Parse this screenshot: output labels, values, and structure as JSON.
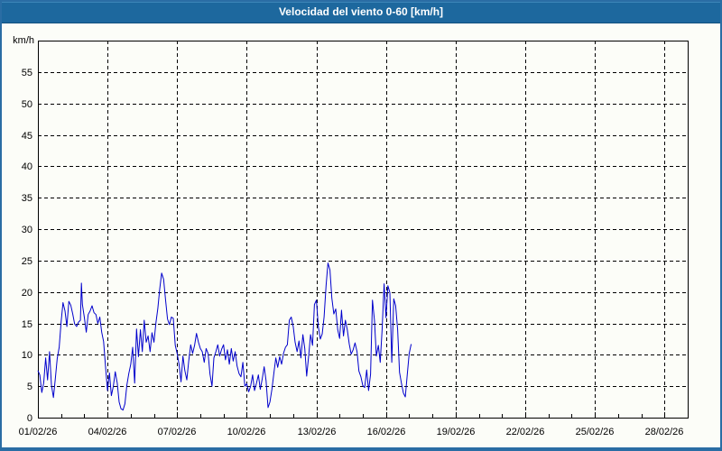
{
  "window": {
    "title": "Velocidad del viento 0-60 [km/h]"
  },
  "chart_data": {
    "type": "line",
    "title": "Velocidad del viento 0-60 [km/h]",
    "unit_label": "km/h",
    "legend": "none",
    "grid": "dashed",
    "x_axis": {
      "tick_labels": [
        "01/02/26",
        "04/02/26",
        "07/02/26",
        "10/02/26",
        "13/02/26",
        "16/02/26",
        "19/02/26",
        "22/02/26",
        "25/02/26",
        "28/02/26"
      ],
      "tick_positions_days": [
        0,
        3,
        6,
        9,
        12,
        15,
        18,
        21,
        24,
        27
      ],
      "range_days": [
        0,
        28
      ],
      "minor_tick_interval_days": 1
    },
    "y_axis": {
      "ticks": [
        0,
        5,
        10,
        15,
        20,
        25,
        30,
        35,
        40,
        45,
        50,
        55
      ],
      "range": [
        0,
        60
      ]
    },
    "colors": {
      "line": "#0000cc",
      "title_bar_bg": "#1d689e",
      "title_text": "#ffffff",
      "panel_border": "#2a6da4",
      "background": "#fcfdf8",
      "axis": "#000000"
    },
    "series": [
      {
        "name": "Velocidad del viento",
        "points_day_value": [
          [
            0.0,
            7.5
          ],
          [
            0.083,
            6.8
          ],
          [
            0.167,
            4.0
          ],
          [
            0.25,
            5.5
          ],
          [
            0.333,
            9.5
          ],
          [
            0.417,
            6.0
          ],
          [
            0.5,
            10.5
          ],
          [
            0.583,
            5.2
          ],
          [
            0.667,
            3.2
          ],
          [
            0.75,
            6.2
          ],
          [
            0.833,
            9.4
          ],
          [
            0.917,
            11.2
          ],
          [
            1.0,
            15.2
          ],
          [
            1.083,
            18.3
          ],
          [
            1.167,
            17.0
          ],
          [
            1.25,
            14.5
          ],
          [
            1.333,
            18.5
          ],
          [
            1.417,
            17.9
          ],
          [
            1.5,
            16.5
          ],
          [
            1.583,
            14.9
          ],
          [
            1.667,
            14.5
          ],
          [
            1.75,
            15.2
          ],
          [
            1.833,
            15.5
          ],
          [
            1.875,
            21.4
          ],
          [
            1.917,
            18.0
          ],
          [
            2.0,
            16.0
          ],
          [
            2.083,
            13.6
          ],
          [
            2.167,
            16.4
          ],
          [
            2.25,
            17.0
          ],
          [
            2.333,
            17.8
          ],
          [
            2.417,
            16.7
          ],
          [
            2.5,
            16.4
          ],
          [
            2.583,
            15.0
          ],
          [
            2.667,
            16.0
          ],
          [
            2.75,
            13.6
          ],
          [
            2.833,
            12.1
          ],
          [
            2.917,
            8.0
          ],
          [
            3.0,
            4.3
          ],
          [
            3.083,
            7.1
          ],
          [
            3.167,
            3.5
          ],
          [
            3.25,
            5.0
          ],
          [
            3.333,
            7.3
          ],
          [
            3.417,
            5.5
          ],
          [
            3.5,
            2.5
          ],
          [
            3.583,
            1.4
          ],
          [
            3.667,
            1.2
          ],
          [
            3.75,
            2.2
          ],
          [
            3.833,
            5.2
          ],
          [
            3.917,
            7.0
          ],
          [
            4.0,
            8.5
          ],
          [
            4.083,
            11.2
          ],
          [
            4.167,
            5.5
          ],
          [
            4.25,
            14.1
          ],
          [
            4.333,
            9.7
          ],
          [
            4.417,
            14.0
          ],
          [
            4.5,
            10.5
          ],
          [
            4.583,
            15.5
          ],
          [
            4.667,
            12.0
          ],
          [
            4.75,
            13.0
          ],
          [
            4.833,
            10.5
          ],
          [
            4.917,
            13.5
          ],
          [
            5.0,
            12.0
          ],
          [
            5.083,
            15.0
          ],
          [
            5.167,
            17.4
          ],
          [
            5.25,
            20.5
          ],
          [
            5.333,
            23.0
          ],
          [
            5.417,
            22.0
          ],
          [
            5.5,
            18.8
          ],
          [
            5.583,
            15.7
          ],
          [
            5.667,
            14.8
          ],
          [
            5.75,
            16.0
          ],
          [
            5.833,
            15.8
          ],
          [
            5.917,
            11.5
          ],
          [
            6.0,
            10.2
          ],
          [
            6.083,
            8.5
          ],
          [
            6.167,
            5.7
          ],
          [
            6.25,
            9.8
          ],
          [
            6.333,
            7.5
          ],
          [
            6.417,
            6.0
          ],
          [
            6.5,
            9.0
          ],
          [
            6.583,
            11.6
          ],
          [
            6.667,
            10.2
          ],
          [
            6.75,
            11.5
          ],
          [
            6.833,
            13.4
          ],
          [
            6.917,
            12.0
          ],
          [
            7.0,
            11.0
          ],
          [
            7.083,
            10.5
          ],
          [
            7.167,
            8.8
          ],
          [
            7.25,
            11.0
          ],
          [
            7.333,
            10.2
          ],
          [
            7.417,
            6.9
          ],
          [
            7.5,
            5.0
          ],
          [
            7.583,
            9.5
          ],
          [
            7.667,
            10.5
          ],
          [
            7.75,
            11.6
          ],
          [
            7.833,
            9.8
          ],
          [
            7.917,
            10.9
          ],
          [
            8.0,
            11.6
          ],
          [
            8.083,
            9.2
          ],
          [
            8.167,
            10.8
          ],
          [
            8.25,
            8.5
          ],
          [
            8.333,
            11.0
          ],
          [
            8.417,
            9.0
          ],
          [
            8.5,
            10.5
          ],
          [
            8.583,
            8.2
          ],
          [
            8.667,
            7.0
          ],
          [
            8.75,
            6.5
          ],
          [
            8.833,
            8.8
          ],
          [
            8.917,
            5.0
          ],
          [
            9.0,
            5.4
          ],
          [
            9.083,
            4.1
          ],
          [
            9.167,
            5.0
          ],
          [
            9.25,
            6.8
          ],
          [
            9.333,
            4.3
          ],
          [
            9.417,
            5.5
          ],
          [
            9.5,
            6.8
          ],
          [
            9.583,
            4.5
          ],
          [
            9.667,
            6.2
          ],
          [
            9.75,
            8.1
          ],
          [
            9.833,
            5.9
          ],
          [
            9.917,
            1.6
          ],
          [
            10.0,
            2.5
          ],
          [
            10.083,
            4.5
          ],
          [
            10.167,
            7.0
          ],
          [
            10.25,
            9.5
          ],
          [
            10.333,
            8.0
          ],
          [
            10.417,
            9.7
          ],
          [
            10.5,
            8.5
          ],
          [
            10.583,
            10.2
          ],
          [
            10.667,
            11.2
          ],
          [
            10.75,
            11.6
          ],
          [
            10.833,
            15.5
          ],
          [
            10.917,
            16.0
          ],
          [
            11.0,
            14.5
          ],
          [
            11.083,
            12.0
          ],
          [
            11.167,
            10.5
          ],
          [
            11.25,
            12.2
          ],
          [
            11.333,
            9.5
          ],
          [
            11.417,
            13.2
          ],
          [
            11.5,
            11.0
          ],
          [
            11.583,
            6.6
          ],
          [
            11.667,
            9.8
          ],
          [
            11.75,
            13.2
          ],
          [
            11.833,
            11.5
          ],
          [
            11.917,
            18.0
          ],
          [
            12.0,
            18.7
          ],
          [
            12.083,
            14.5
          ],
          [
            12.167,
            12.5
          ],
          [
            12.25,
            13.3
          ],
          [
            12.333,
            16.0
          ],
          [
            12.417,
            21.0
          ],
          [
            12.5,
            24.6
          ],
          [
            12.583,
            23.5
          ],
          [
            12.667,
            19.0
          ],
          [
            12.75,
            16.5
          ],
          [
            12.833,
            17.3
          ],
          [
            12.917,
            14.0
          ],
          [
            13.0,
            12.6
          ],
          [
            13.083,
            17.1
          ],
          [
            13.167,
            13.0
          ],
          [
            13.25,
            15.5
          ],
          [
            13.333,
            14.0
          ],
          [
            13.417,
            11.7
          ],
          [
            13.5,
            10.1
          ],
          [
            13.583,
            10.8
          ],
          [
            13.667,
            11.9
          ],
          [
            13.75,
            10.5
          ],
          [
            13.833,
            7.4
          ],
          [
            13.917,
            6.5
          ],
          [
            14.0,
            5.1
          ],
          [
            14.083,
            4.8
          ],
          [
            14.167,
            7.6
          ],
          [
            14.25,
            4.3
          ],
          [
            14.333,
            6.9
          ],
          [
            14.417,
            18.7
          ],
          [
            14.5,
            15.5
          ],
          [
            14.583,
            9.8
          ],
          [
            14.667,
            11.5
          ],
          [
            14.75,
            8.8
          ],
          [
            14.833,
            14.0
          ],
          [
            14.917,
            21.3
          ],
          [
            15.0,
            15.9
          ],
          [
            15.083,
            21.0
          ],
          [
            15.167,
            19.9
          ],
          [
            15.25,
            8.8
          ],
          [
            15.333,
            18.9
          ],
          [
            15.417,
            17.8
          ],
          [
            15.5,
            14.0
          ],
          [
            15.583,
            7.2
          ],
          [
            15.667,
            5.4
          ],
          [
            15.75,
            3.9
          ],
          [
            15.833,
            3.3
          ],
          [
            15.917,
            6.9
          ],
          [
            16.0,
            10.2
          ],
          [
            16.083,
            11.7
          ]
        ]
      }
    ]
  }
}
